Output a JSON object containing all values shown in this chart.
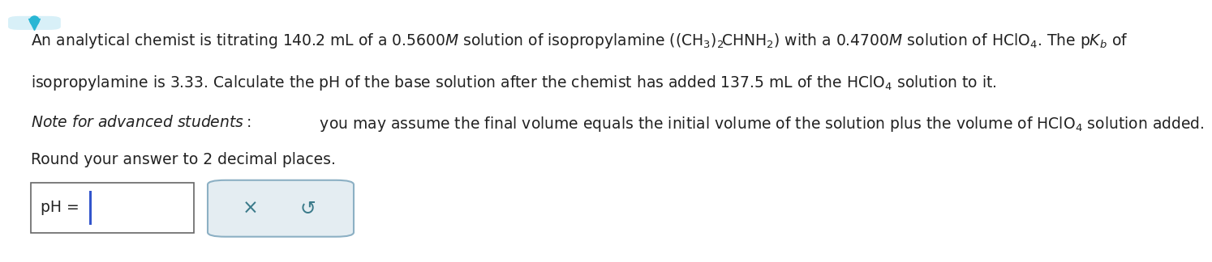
{
  "bg_color": "#ffffff",
  "text_color": "#222222",
  "line1": "An analytical chemist is titrating 140.2 mL of a 0.5600$M$ solution of isopropylamine $\\left(\\left(\\mathrm{CH_3}\\right)_2\\!\\mathrm{CHNH_2}\\right)$ with a 0.4700$M$ solution of HClO$_4$. The p$K_b$ of",
  "line2": "isopropylamine is 3.33. Calculate the pH of the base solution after the chemist has added 137.5 mL of the HClO$_4$ solution to it.",
  "line3a": "$\\it{Note\\ for\\ advanced\\ students:}$",
  "line3b": " you may assume the final volume equals the initial volume of the solution plus the volume of HClO$_4$ solution added.",
  "line4": "Round your answer to 2 decimal places.",
  "main_fontsize": 13.5,
  "note_fontsize": 13.5,
  "cursor_color": "#3355cc",
  "button_bg": "#e4edf2",
  "button_border": "#8cb0c4",
  "symbol_color": "#3a7a8a",
  "x_symbol": "×",
  "undo_symbol": "↺",
  "triangle_color": "#29b6d4",
  "triangle_bg": "#d8f0f8"
}
